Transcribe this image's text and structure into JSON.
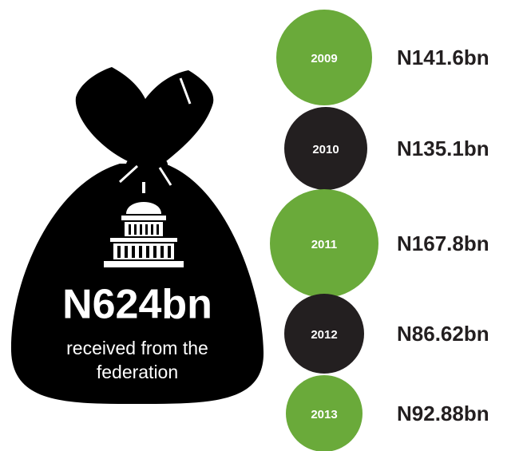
{
  "total": {
    "amount": "N624bn",
    "caption_lines": [
      "received from the",
      "federation"
    ]
  },
  "years": [
    {
      "year": "2009",
      "amount": "N141.6bn",
      "color": "#6aaa3a"
    },
    {
      "year": "2010",
      "amount": "N135.1bn",
      "color": "#231f20"
    },
    {
      "year": "2011",
      "amount": "N167.8bn",
      "color": "#6aaa3a"
    },
    {
      "year": "2012",
      "amount": "N86.62bn",
      "color": "#231f20"
    },
    {
      "year": "2013",
      "amount": "N92.88bn",
      "color": "#6aaa3a"
    }
  ]
}
